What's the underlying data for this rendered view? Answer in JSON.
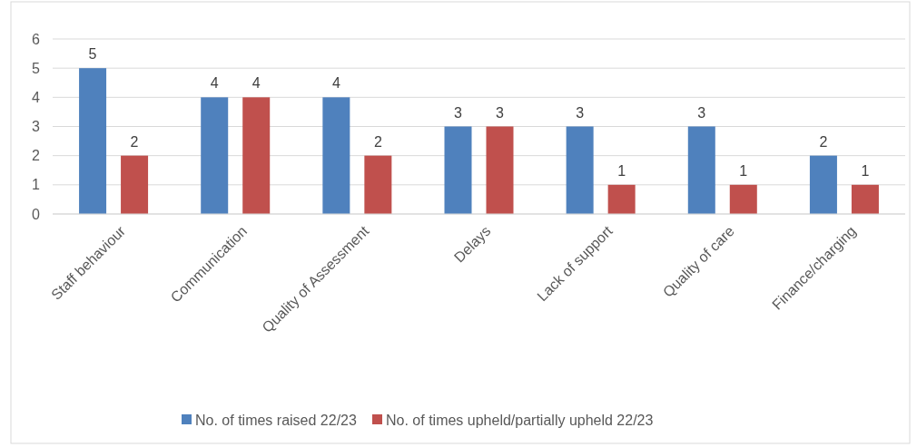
{
  "chart_data": {
    "type": "bar",
    "categories": [
      "Staff behaviour",
      "Communication",
      "Quality of Assessment",
      "Delays",
      "Lack of support",
      "Quality of care",
      "Finance/charging"
    ],
    "series": [
      {
        "name": "No. of times raised 22/23",
        "color": "#4f81bd",
        "values": [
          5,
          4,
          4,
          3,
          3,
          3,
          2
        ]
      },
      {
        "name": "No. of times upheld/partially upheld 22/23",
        "color": "#c0504d",
        "values": [
          2,
          4,
          2,
          3,
          1,
          1,
          1
        ]
      }
    ],
    "ylim": [
      0,
      6
    ],
    "yticks": [
      0,
      1,
      2,
      3,
      4,
      5,
      6
    ],
    "grid": "y",
    "legend": "bottom",
    "data_labels": true
  }
}
